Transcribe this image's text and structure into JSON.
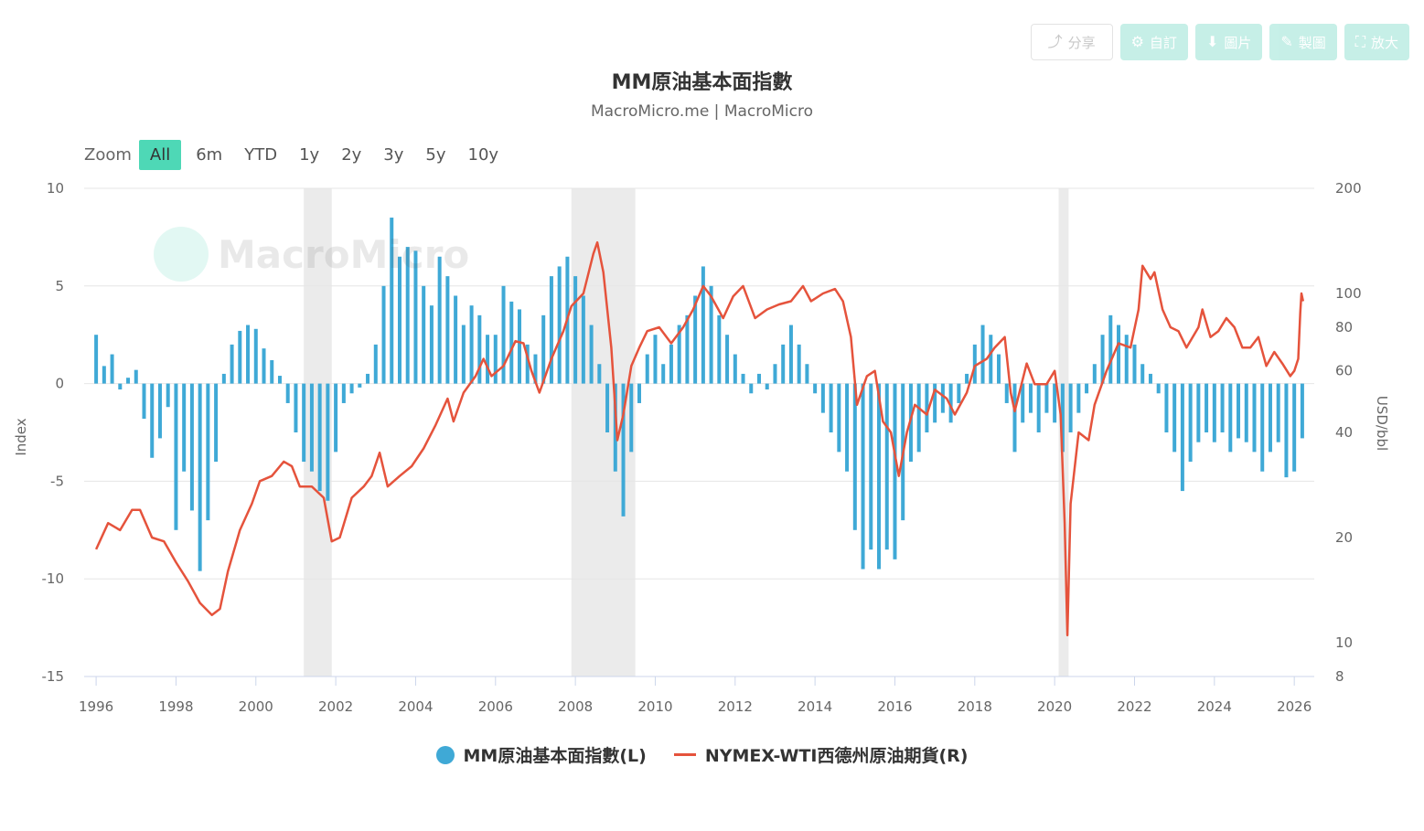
{
  "toolbar": {
    "share": "分享",
    "customize": "自訂",
    "image": "圖片",
    "edit": "製圖",
    "fullscreen": "放大"
  },
  "header": {
    "title": "MM原油基本面指數",
    "subtitle": "MacroMicro.me | MacroMicro"
  },
  "zoom": {
    "label": "Zoom",
    "buttons": [
      "All",
      "6m",
      "YTD",
      "1y",
      "2y",
      "3y",
      "5y",
      "10y"
    ],
    "active": "All"
  },
  "watermark": "MacroMicro",
  "colors": {
    "index_bars": "#3fa9d6",
    "wti_line": "#e5533c",
    "recession": "#ebebeb",
    "active_zoom": "#4ed8b6"
  },
  "chart_data": {
    "type": "bar+line",
    "left_axis": {
      "label": "Index",
      "ticks": [
        10,
        5,
        0,
        -5,
        -10,
        -15
      ],
      "range": [
        -15,
        10
      ]
    },
    "right_axis": {
      "label": "USD/bbl",
      "ticks": [
        200,
        100,
        80,
        60,
        40,
        20,
        10,
        8
      ],
      "scale": "log",
      "range": [
        8,
        200
      ]
    },
    "x_ticks": [
      "1996",
      "1998",
      "2000",
      "2002",
      "2004",
      "2006",
      "2008",
      "2010",
      "2012",
      "2014",
      "2016",
      "2018",
      "2020",
      "2022",
      "2024",
      "2026"
    ],
    "x_range": [
      1995.7,
      2026.5
    ],
    "recessions": [
      [
        2001.2,
        2001.9
      ],
      [
        2007.9,
        2009.5
      ],
      [
        2020.1,
        2020.35
      ]
    ],
    "series": [
      {
        "name": "MM原油基本面指數(L)",
        "type": "bar",
        "points": [
          [
            1996.0,
            2.5
          ],
          [
            1996.2,
            0.9
          ],
          [
            1996.4,
            1.5
          ],
          [
            1996.6,
            -0.3
          ],
          [
            1996.8,
            0.3
          ],
          [
            1997.0,
            0.7
          ],
          [
            1997.2,
            -1.8
          ],
          [
            1997.4,
            -3.8
          ],
          [
            1997.6,
            -2.8
          ],
          [
            1997.8,
            -1.2
          ],
          [
            1998.0,
            -7.5
          ],
          [
            1998.2,
            -4.5
          ],
          [
            1998.4,
            -6.5
          ],
          [
            1998.6,
            -9.6
          ],
          [
            1998.8,
            -7.0
          ],
          [
            1999.0,
            -4.0
          ],
          [
            1999.2,
            0.5
          ],
          [
            1999.4,
            2.0
          ],
          [
            1999.6,
            2.7
          ],
          [
            1999.8,
            3.0
          ],
          [
            2000.0,
            2.8
          ],
          [
            2000.2,
            1.8
          ],
          [
            2000.4,
            1.2
          ],
          [
            2000.6,
            0.4
          ],
          [
            2000.8,
            -1.0
          ],
          [
            2001.0,
            -2.5
          ],
          [
            2001.2,
            -4.0
          ],
          [
            2001.4,
            -4.5
          ],
          [
            2001.6,
            -5.5
          ],
          [
            2001.8,
            -6.0
          ],
          [
            2002.0,
            -3.5
          ],
          [
            2002.2,
            -1.0
          ],
          [
            2002.4,
            -0.5
          ],
          [
            2002.6,
            -0.2
          ],
          [
            2002.8,
            0.5
          ],
          [
            2003.0,
            2.0
          ],
          [
            2003.2,
            5.0
          ],
          [
            2003.4,
            8.5
          ],
          [
            2003.6,
            6.5
          ],
          [
            2003.8,
            7.0
          ],
          [
            2004.0,
            6.8
          ],
          [
            2004.2,
            5.0
          ],
          [
            2004.4,
            4.0
          ],
          [
            2004.6,
            6.5
          ],
          [
            2004.8,
            5.5
          ],
          [
            2005.0,
            4.5
          ],
          [
            2005.2,
            3.0
          ],
          [
            2005.4,
            4.0
          ],
          [
            2005.6,
            3.5
          ],
          [
            2005.8,
            2.5
          ],
          [
            2006.0,
            2.5
          ],
          [
            2006.2,
            5.0
          ],
          [
            2006.4,
            4.2
          ],
          [
            2006.6,
            3.8
          ],
          [
            2006.8,
            2.0
          ],
          [
            2007.0,
            1.5
          ],
          [
            2007.2,
            3.5
          ],
          [
            2007.4,
            5.5
          ],
          [
            2007.6,
            6.0
          ],
          [
            2007.8,
            6.5
          ],
          [
            2008.0,
            5.5
          ],
          [
            2008.2,
            4.5
          ],
          [
            2008.4,
            3.0
          ],
          [
            2008.6,
            1.0
          ],
          [
            2008.8,
            -2.5
          ],
          [
            2009.0,
            -4.5
          ],
          [
            2009.2,
            -6.8
          ],
          [
            2009.4,
            -3.5
          ],
          [
            2009.6,
            -1.0
          ],
          [
            2009.8,
            1.5
          ],
          [
            2010.0,
            2.5
          ],
          [
            2010.2,
            1.0
          ],
          [
            2010.4,
            2.0
          ],
          [
            2010.6,
            3.0
          ],
          [
            2010.8,
            3.5
          ],
          [
            2011.0,
            4.5
          ],
          [
            2011.2,
            6.0
          ],
          [
            2011.4,
            5.0
          ],
          [
            2011.6,
            3.5
          ],
          [
            2011.8,
            2.5
          ],
          [
            2012.0,
            1.5
          ],
          [
            2012.2,
            0.5
          ],
          [
            2012.4,
            -0.5
          ],
          [
            2012.6,
            0.5
          ],
          [
            2012.8,
            -0.3
          ],
          [
            2013.0,
            1.0
          ],
          [
            2013.2,
            2.0
          ],
          [
            2013.4,
            3.0
          ],
          [
            2013.6,
            2.0
          ],
          [
            2013.8,
            1.0
          ],
          [
            2014.0,
            -0.5
          ],
          [
            2014.2,
            -1.5
          ],
          [
            2014.4,
            -2.5
          ],
          [
            2014.6,
            -3.5
          ],
          [
            2014.8,
            -4.5
          ],
          [
            2015.0,
            -7.5
          ],
          [
            2015.2,
            -9.5
          ],
          [
            2015.4,
            -8.5
          ],
          [
            2015.6,
            -9.5
          ],
          [
            2015.8,
            -8.5
          ],
          [
            2016.0,
            -9.0
          ],
          [
            2016.2,
            -7.0
          ],
          [
            2016.4,
            -4.0
          ],
          [
            2016.6,
            -3.5
          ],
          [
            2016.8,
            -2.5
          ],
          [
            2017.0,
            -2.0
          ],
          [
            2017.2,
            -1.5
          ],
          [
            2017.4,
            -2.0
          ],
          [
            2017.6,
            -1.0
          ],
          [
            2017.8,
            0.5
          ],
          [
            2018.0,
            2.0
          ],
          [
            2018.2,
            3.0
          ],
          [
            2018.4,
            2.5
          ],
          [
            2018.6,
            1.5
          ],
          [
            2018.8,
            -1.0
          ],
          [
            2019.0,
            -3.5
          ],
          [
            2019.2,
            -2.0
          ],
          [
            2019.4,
            -1.5
          ],
          [
            2019.6,
            -2.5
          ],
          [
            2019.8,
            -1.5
          ],
          [
            2020.0,
            -2.0
          ],
          [
            2020.2,
            -3.5
          ],
          [
            2020.4,
            -2.5
          ],
          [
            2020.6,
            -1.5
          ],
          [
            2020.8,
            -0.5
          ],
          [
            2021.0,
            1.0
          ],
          [
            2021.2,
            2.5
          ],
          [
            2021.4,
            3.5
          ],
          [
            2021.6,
            3.0
          ],
          [
            2021.8,
            2.5
          ],
          [
            2022.0,
            2.0
          ],
          [
            2022.2,
            1.0
          ],
          [
            2022.4,
            0.5
          ],
          [
            2022.6,
            -0.5
          ],
          [
            2022.8,
            -2.5
          ],
          [
            2023.0,
            -3.5
          ],
          [
            2023.2,
            -5.5
          ],
          [
            2023.4,
            -4.0
          ],
          [
            2023.6,
            -3.0
          ],
          [
            2023.8,
            -2.5
          ],
          [
            2024.0,
            -3.0
          ],
          [
            2024.2,
            -2.5
          ],
          [
            2024.4,
            -3.5
          ],
          [
            2024.6,
            -2.8
          ],
          [
            2024.8,
            -3.0
          ],
          [
            2025.0,
            -3.5
          ],
          [
            2025.2,
            -4.5
          ],
          [
            2025.4,
            -3.5
          ],
          [
            2025.6,
            -3.0
          ],
          [
            2025.8,
            -4.8
          ],
          [
            2026.0,
            -4.5
          ],
          [
            2026.2,
            -2.8
          ]
        ]
      },
      {
        "name": "NYMEX-WTI西德州原油期貨(R)",
        "type": "line",
        "points": [
          [
            1996.0,
            18.5
          ],
          [
            1996.3,
            22
          ],
          [
            1996.6,
            21
          ],
          [
            1996.9,
            24
          ],
          [
            1997.1,
            24
          ],
          [
            1997.4,
            20
          ],
          [
            1997.7,
            19.5
          ],
          [
            1998.0,
            17
          ],
          [
            1998.3,
            15
          ],
          [
            1998.6,
            13
          ],
          [
            1998.9,
            12
          ],
          [
            1999.1,
            12.5
          ],
          [
            1999.3,
            16
          ],
          [
            1999.6,
            21
          ],
          [
            1999.9,
            25
          ],
          [
            2000.1,
            29
          ],
          [
            2000.4,
            30
          ],
          [
            2000.7,
            33
          ],
          [
            2000.9,
            32
          ],
          [
            2001.1,
            28
          ],
          [
            2001.4,
            28
          ],
          [
            2001.7,
            26
          ],
          [
            2001.9,
            19.5
          ],
          [
            2002.1,
            20
          ],
          [
            2002.4,
            26
          ],
          [
            2002.7,
            28
          ],
          [
            2002.9,
            30
          ],
          [
            2003.1,
            35
          ],
          [
            2003.3,
            28
          ],
          [
            2003.6,
            30
          ],
          [
            2003.9,
            32
          ],
          [
            2004.2,
            36
          ],
          [
            2004.5,
            42
          ],
          [
            2004.8,
            50
          ],
          [
            2004.95,
            43
          ],
          [
            2005.2,
            52
          ],
          [
            2005.5,
            58
          ],
          [
            2005.7,
            65
          ],
          [
            2005.9,
            58
          ],
          [
            2006.2,
            62
          ],
          [
            2006.5,
            73
          ],
          [
            2006.7,
            72
          ],
          [
            2006.9,
            60
          ],
          [
            2007.1,
            52
          ],
          [
            2007.4,
            65
          ],
          [
            2007.7,
            78
          ],
          [
            2007.9,
            92
          ],
          [
            2008.2,
            100
          ],
          [
            2008.45,
            130
          ],
          [
            2008.55,
            140
          ],
          [
            2008.7,
            115
          ],
          [
            2008.9,
            70
          ],
          [
            2009.05,
            38
          ],
          [
            2009.2,
            45
          ],
          [
            2009.4,
            62
          ],
          [
            2009.6,
            70
          ],
          [
            2009.8,
            78
          ],
          [
            2010.1,
            80
          ],
          [
            2010.4,
            72
          ],
          [
            2010.7,
            80
          ],
          [
            2010.95,
            90
          ],
          [
            2011.2,
            105
          ],
          [
            2011.4,
            98
          ],
          [
            2011.7,
            85
          ],
          [
            2011.95,
            98
          ],
          [
            2012.2,
            105
          ],
          [
            2012.5,
            85
          ],
          [
            2012.8,
            90
          ],
          [
            2013.1,
            93
          ],
          [
            2013.4,
            95
          ],
          [
            2013.7,
            105
          ],
          [
            2013.9,
            95
          ],
          [
            2014.2,
            100
          ],
          [
            2014.5,
            103
          ],
          [
            2014.7,
            95
          ],
          [
            2014.9,
            75
          ],
          [
            2015.05,
            48
          ],
          [
            2015.3,
            58
          ],
          [
            2015.5,
            60
          ],
          [
            2015.7,
            43
          ],
          [
            2015.9,
            40
          ],
          [
            2016.1,
            30
          ],
          [
            2016.3,
            40
          ],
          [
            2016.5,
            48
          ],
          [
            2016.8,
            45
          ],
          [
            2017.0,
            53
          ],
          [
            2017.3,
            50
          ],
          [
            2017.5,
            45
          ],
          [
            2017.8,
            52
          ],
          [
            2018.0,
            62
          ],
          [
            2018.3,
            65
          ],
          [
            2018.5,
            70
          ],
          [
            2018.75,
            75
          ],
          [
            2018.9,
            52
          ],
          [
            2019.0,
            46
          ],
          [
            2019.3,
            63
          ],
          [
            2019.5,
            55
          ],
          [
            2019.8,
            55
          ],
          [
            2020.0,
            60
          ],
          [
            2020.15,
            45
          ],
          [
            2020.25,
            22
          ],
          [
            2020.32,
            10.5
          ],
          [
            2020.4,
            25
          ],
          [
            2020.6,
            40
          ],
          [
            2020.85,
            38
          ],
          [
            2021.0,
            48
          ],
          [
            2021.3,
            60
          ],
          [
            2021.6,
            72
          ],
          [
            2021.9,
            70
          ],
          [
            2022.1,
            90
          ],
          [
            2022.2,
            120
          ],
          [
            2022.4,
            110
          ],
          [
            2022.5,
            115
          ],
          [
            2022.7,
            90
          ],
          [
            2022.9,
            80
          ],
          [
            2023.1,
            78
          ],
          [
            2023.3,
            70
          ],
          [
            2023.6,
            80
          ],
          [
            2023.7,
            90
          ],
          [
            2023.9,
            75
          ],
          [
            2024.1,
            78
          ],
          [
            2024.3,
            85
          ],
          [
            2024.5,
            80
          ],
          [
            2024.7,
            70
          ],
          [
            2024.9,
            70
          ],
          [
            2025.1,
            75
          ],
          [
            2025.3,
            62
          ],
          [
            2025.5,
            68
          ],
          [
            2025.7,
            63
          ],
          [
            2025.9,
            58
          ],
          [
            2026.0,
            60
          ],
          [
            2026.1,
            65
          ],
          [
            2026.15,
            88
          ],
          [
            2026.18,
            100
          ],
          [
            2026.22,
            95
          ]
        ]
      }
    ]
  }
}
